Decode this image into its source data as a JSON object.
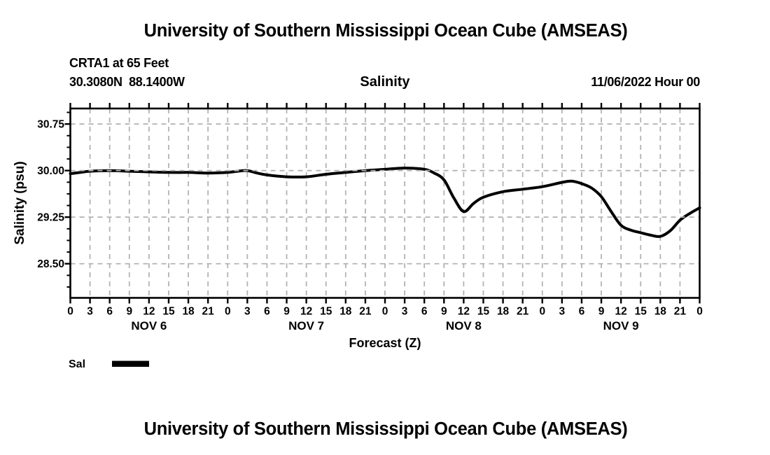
{
  "page": {
    "background": "#ffffff",
    "text_color": "#000000"
  },
  "header": {
    "title": "University of Southern Mississippi Ocean Cube (AMSEAS)",
    "station_name_line": "CRTA1 at 65 Feet",
    "coordinates_line": "30.3080N  88.1400W",
    "plot_type_label": "Salinity",
    "run_datetime_label": "11/06/2022 Hour 00"
  },
  "footer": {
    "title": "University of Southern Mississippi Ocean Cube (AMSEAS)"
  },
  "legend": {
    "label": "Sal",
    "swatch_color": "#000000"
  },
  "chart_data": {
    "type": "line",
    "title": "Salinity",
    "xlabel": "Forecast (Z)",
    "ylabel": "Salinity (psu)",
    "xlim_hours": [
      0,
      96
    ],
    "ylim": [
      27.95,
      31.0
    ],
    "yticks": [
      30.75,
      30.0,
      29.25,
      28.5
    ],
    "ytick_labels": [
      "30.75",
      "30.00",
      "29.25",
      "28.50"
    ],
    "y_minor_tick_interval": 0.1875,
    "xtick_step_hours": 3,
    "xtick_labels_cycle": [
      "0",
      "3",
      "6",
      "9",
      "12",
      "15",
      "18",
      "21"
    ],
    "day_labels": [
      {
        "label": "NOV 6",
        "hour": 12
      },
      {
        "label": "NOV 7",
        "hour": 36
      },
      {
        "label": "NOV 8",
        "hour": 60
      },
      {
        "label": "NOV 9",
        "hour": 84
      }
    ],
    "grid": {
      "show": true,
      "color": "#b3b3b3",
      "dash": [
        7,
        6
      ]
    },
    "line_width": 4,
    "legend_position": "bottom-left",
    "series": [
      {
        "name": "Sal",
        "color": "#000000",
        "x_hours": [
          0,
          1.5,
          3,
          6,
          9,
          12,
          15,
          18,
          21,
          24,
          25.5,
          27,
          28.5,
          30,
          33,
          36,
          39,
          42,
          45,
          48,
          51,
          54,
          55.5,
          57,
          58.5,
          60,
          61.5,
          63,
          66,
          69,
          72,
          75,
          76.5,
          78,
          79.5,
          81,
          82.5,
          84,
          85.5,
          87,
          88.5,
          90,
          91.5,
          93,
          94.5,
          96
        ],
        "values": [
          29.95,
          29.97,
          29.99,
          30.0,
          29.99,
          29.98,
          29.97,
          29.97,
          29.96,
          29.97,
          29.99,
          30.0,
          29.96,
          29.93,
          29.9,
          29.9,
          29.94,
          29.97,
          30.0,
          30.02,
          30.04,
          30.02,
          29.96,
          29.85,
          29.56,
          29.34,
          29.47,
          29.57,
          29.66,
          29.7,
          29.74,
          29.81,
          29.83,
          29.79,
          29.72,
          29.58,
          29.34,
          29.12,
          29.04,
          29.0,
          28.96,
          28.94,
          29.03,
          29.2,
          29.31,
          29.4
        ]
      }
    ]
  }
}
